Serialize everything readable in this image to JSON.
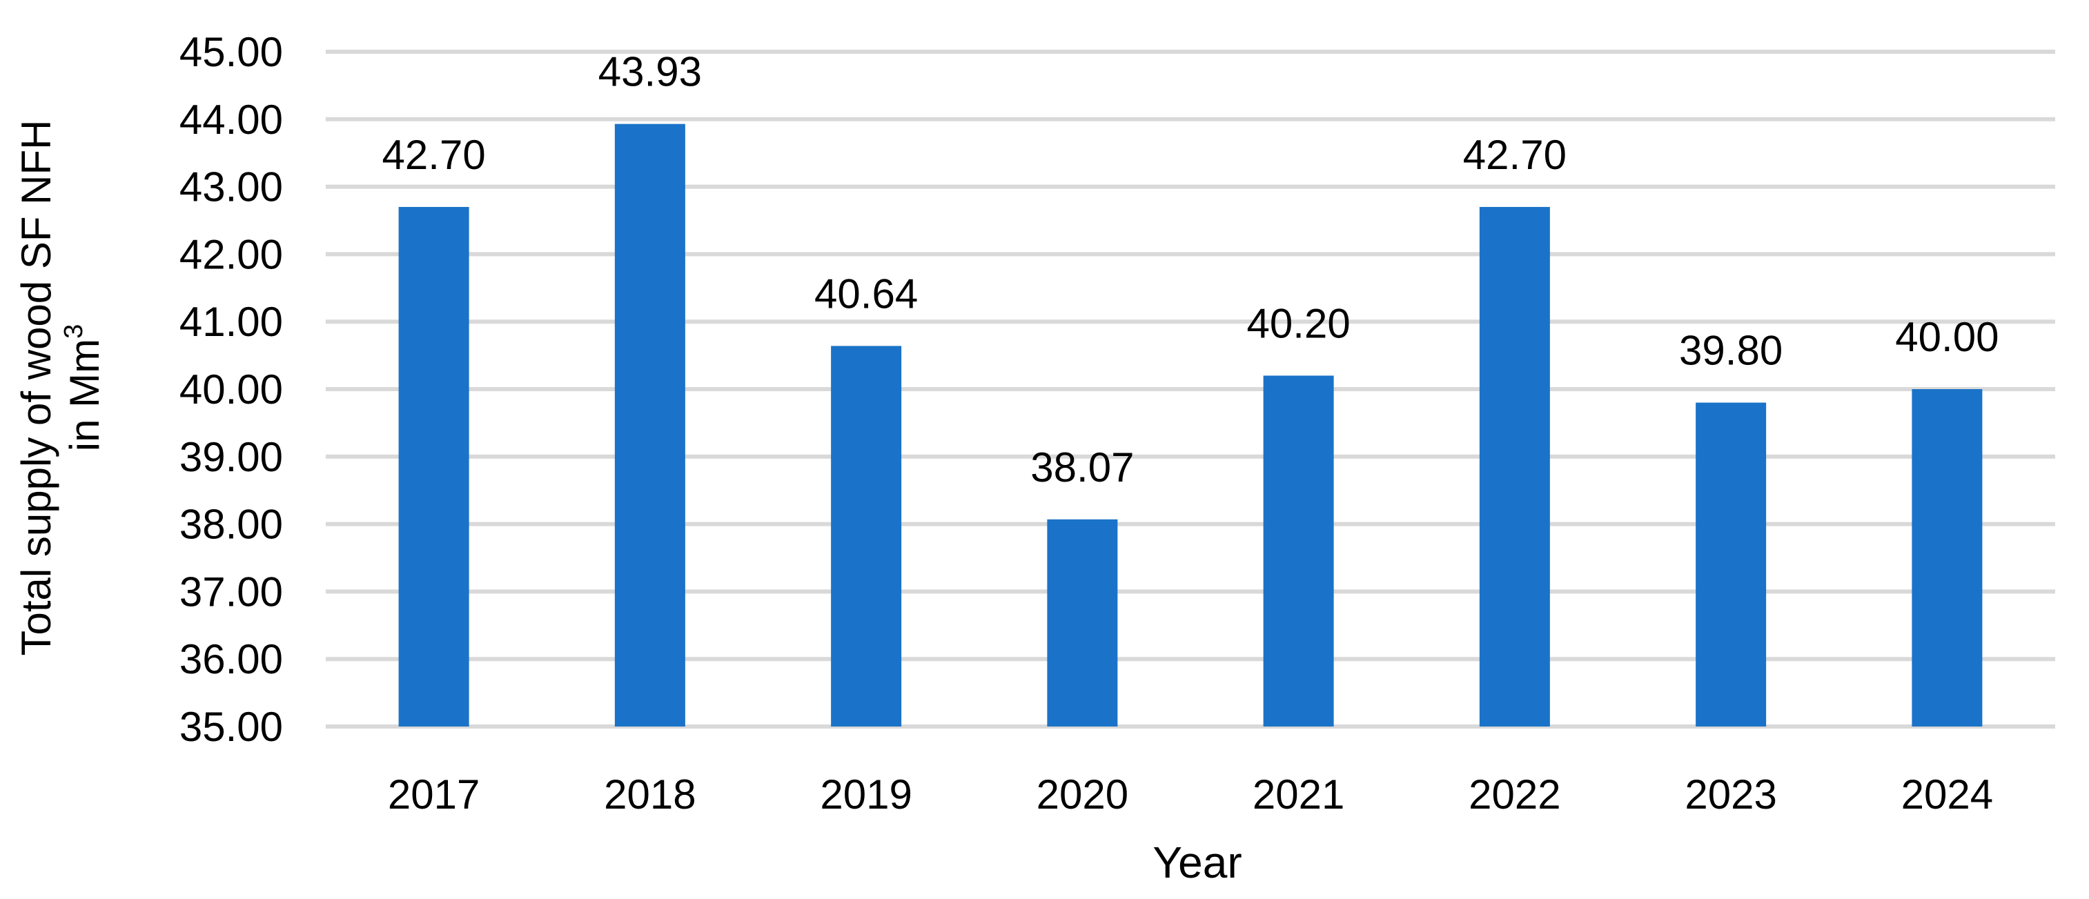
{
  "chart_data": {
    "type": "bar",
    "categories": [
      "2017",
      "2018",
      "2019",
      "2020",
      "2021",
      "2022",
      "2023",
      "2024"
    ],
    "values": [
      42.7,
      43.93,
      40.64,
      38.07,
      40.2,
      42.7,
      39.8,
      40.0
    ],
    "value_labels": [
      "42.70",
      "43.93",
      "40.64",
      "38.07",
      "40.20",
      "42.70",
      "39.80",
      "40.00"
    ],
    "xlabel": "Year",
    "ylabel_line1": "Total supply of wood SF NFH",
    "ylabel_line2_main": "in Mm",
    "ylabel_line2_sup": "3",
    "ylim": [
      35,
      45
    ],
    "yticks": [
      "35.00",
      "36.00",
      "37.00",
      "38.00",
      "39.00",
      "40.00",
      "41.00",
      "42.00",
      "43.00",
      "44.00",
      "45.00"
    ],
    "grid": true,
    "bar_color": "#1a73c8",
    "grid_color": "#d9d9d9"
  }
}
